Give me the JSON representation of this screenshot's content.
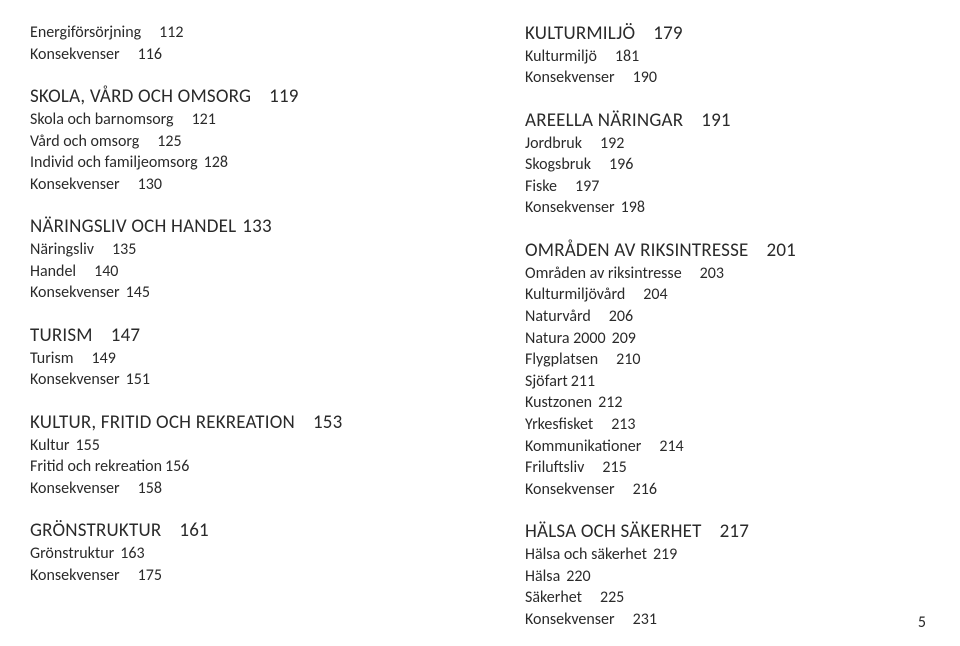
{
  "pageNumber": "5",
  "leftSections": [
    {
      "heading": null,
      "items": [
        {
          "label": "Energiförsörjning",
          "page": "112"
        },
        {
          "label": "Konsekvenser",
          "page": "116"
        }
      ]
    },
    {
      "heading": {
        "label": "SKOLA, VÅRD OCH OMSORG",
        "page": "119"
      },
      "items": [
        {
          "label": "Skola och barnomsorg",
          "page": "121"
        },
        {
          "label": "Vård och omsorg",
          "page": "125"
        },
        {
          "label": "Individ och familjeomsorg",
          "page": "128",
          "tight": 1
        },
        {
          "label": "Konsekvenser",
          "page": "130"
        }
      ]
    },
    {
      "heading": {
        "label": "NÄRINGSLIV OCH HANDEL",
        "page": "133",
        "tight": 1
      },
      "items": [
        {
          "label": "Näringsliv",
          "page": "135"
        },
        {
          "label": "Handel",
          "page": "140"
        },
        {
          "label": "Konsekvenser",
          "page": "145",
          "tight": 1
        }
      ]
    },
    {
      "heading": {
        "label": "TURISM",
        "page": "147"
      },
      "items": [
        {
          "label": "Turism",
          "page": "149"
        },
        {
          "label": "Konsekvenser",
          "page": "151",
          "tight": 1
        }
      ]
    },
    {
      "heading": {
        "label": "KULTUR, FRITID OCH REKREATION",
        "page": "153"
      },
      "items": [
        {
          "label": "Kultur",
          "page": "155",
          "tight": 1
        },
        {
          "label": "Fritid och rekreation",
          "page": "156",
          "tight": 0
        },
        {
          "label": "Konsekvenser",
          "page": "158"
        }
      ]
    },
    {
      "heading": {
        "label": "GRÖNSTRUKTUR",
        "page": "161"
      },
      "items": [
        {
          "label": "Grönstruktur",
          "page": "163",
          "tight": 1
        },
        {
          "label": "Konsekvenser",
          "page": "175"
        }
      ]
    }
  ],
  "rightSections": [
    {
      "heading": {
        "label": "KULTURMILJÖ",
        "page": "179"
      },
      "items": [
        {
          "label": "Kulturmiljö",
          "page": "181"
        },
        {
          "label": "Konsekvenser",
          "page": "190"
        }
      ]
    },
    {
      "heading": {
        "label": "AREELLA NÄRINGAR",
        "page": "191"
      },
      "items": [
        {
          "label": "Jordbruk",
          "page": "192"
        },
        {
          "label": "Skogsbruk",
          "page": "196"
        },
        {
          "label": "Fiske",
          "page": "197"
        },
        {
          "label": "Konsekvenser",
          "page": "198",
          "tight": 1
        }
      ]
    },
    {
      "heading": {
        "label": "OMRÅDEN AV RIKSINTRESSE",
        "page": "201"
      },
      "items": [
        {
          "label": "Områden av riksintresse",
          "page": "203"
        },
        {
          "label": "Kulturmiljövård",
          "page": "204"
        },
        {
          "label": "Naturvård",
          "page": "206"
        },
        {
          "label": "Natura 2000",
          "page": "209",
          "tight": 1
        },
        {
          "label": "Flygplatsen",
          "page": "210"
        },
        {
          "label": "Sjöfart",
          "page": "211",
          "tight": 0
        },
        {
          "label": "Kustzonen",
          "page": "212",
          "tight": 1
        },
        {
          "label": "Yrkesfisket",
          "page": "213"
        },
        {
          "label": "Kommunikationer",
          "page": "214"
        },
        {
          "label": "Friluftsliv",
          "page": "215"
        },
        {
          "label": "Konsekvenser",
          "page": "216"
        }
      ]
    },
    {
      "heading": {
        "label": "HÄLSA OCH SÄKERHET",
        "page": "217"
      },
      "items": [
        {
          "label": "Hälsa och säkerhet",
          "page": "219",
          "tight": 1
        },
        {
          "label": "Hälsa",
          "page": "220",
          "tight": 1
        },
        {
          "label": "Säkerhet",
          "page": "225"
        },
        {
          "label": "Konsekvenser",
          "page": "231"
        }
      ]
    }
  ]
}
